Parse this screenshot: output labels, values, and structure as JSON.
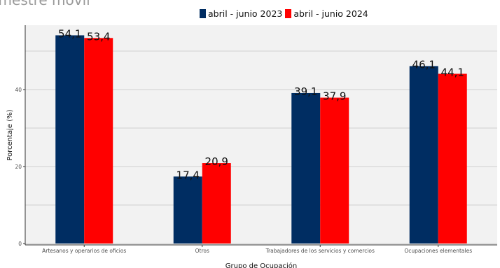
{
  "header": {
    "title_fragment": "imestre móvil"
  },
  "colors": {
    "series_2023": "#002D62",
    "series_2024": "#FF0000",
    "panel_background": "#F2F2F2",
    "grid": "#D0D0D0"
  },
  "chart_data": {
    "type": "bar",
    "xlabel": "Grupo de Ocupación",
    "ylabel": "Porcentaje (%)",
    "categories": [
      "Artesanos y operarios de oficios",
      "Otros",
      "Trabajadores de los servicios y comercios",
      "Ocupaciones elementales"
    ],
    "series": [
      {
        "name": "abril - junio 2023",
        "values": [
          54.1,
          17.4,
          39.1,
          46.1
        ],
        "labels": [
          "54,1",
          "17,4",
          "39,1",
          "46,1"
        ]
      },
      {
        "name": "abril - junio 2024",
        "values": [
          53.4,
          20.9,
          37.9,
          44.1
        ],
        "labels": [
          "53,4",
          "20,9",
          "37,9",
          "44,1"
        ]
      }
    ],
    "yticks": [
      0,
      20,
      40
    ],
    "ylim": [
      0,
      57
    ],
    "grid": true,
    "legend_position": "top"
  }
}
